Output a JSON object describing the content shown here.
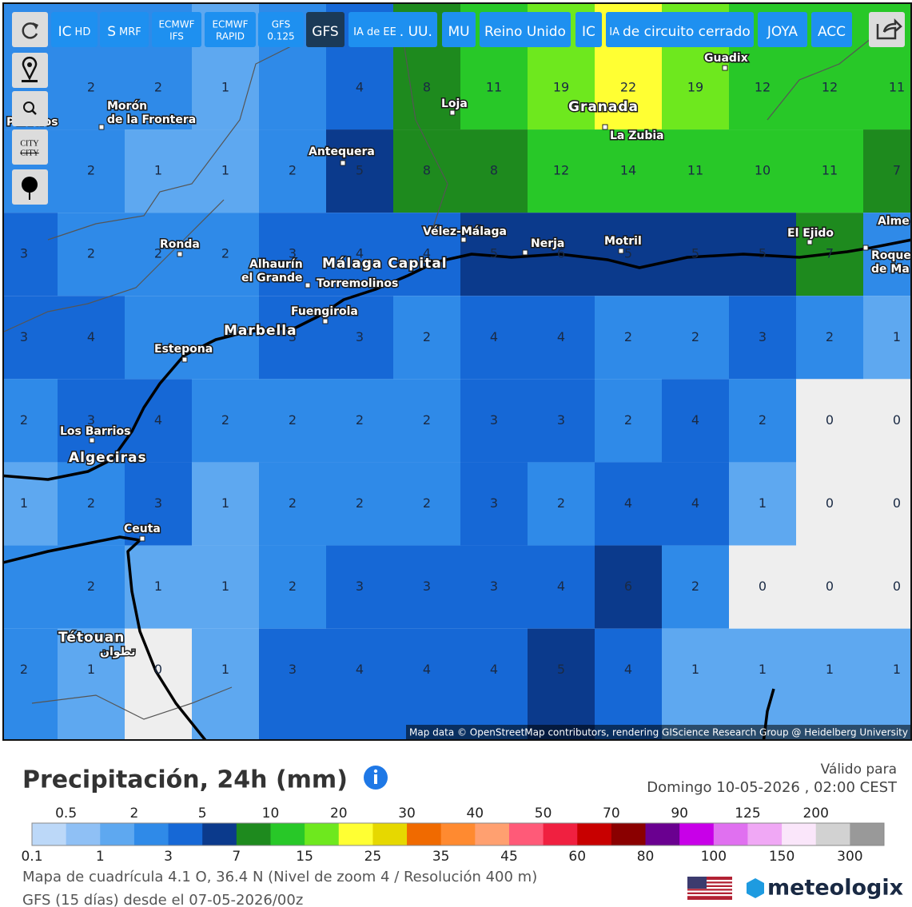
{
  "toolbar": {
    "buttons": [
      {
        "text": "IC",
        "post": "HD"
      },
      {
        "text": "S",
        "post": "MRF"
      },
      {
        "lines": [
          "ECMWF",
          "IFS"
        ]
      },
      {
        "lines": [
          "ECMWF",
          "RAPID"
        ]
      },
      {
        "lines": [
          "GFS",
          "0.125"
        ]
      },
      {
        "text": "GFS",
        "selected": true
      },
      {
        "pre": "IA de EE",
        "text": ". UU."
      },
      {
        "text": "MU"
      },
      {
        "text": "Reino Unido"
      },
      {
        "text": "IC"
      },
      {
        "pre": "IA",
        "text": "de circuito cerrado"
      },
      {
        "text": "JOYA"
      },
      {
        "text": "ACC"
      }
    ]
  },
  "sidebar": {
    "city_toggle": [
      "CITY",
      "CITY"
    ]
  },
  "map": {
    "grid_values": [
      [
        null,
        2,
        2,
        1,
        null,
        4,
        8,
        11,
        19,
        22,
        19,
        12,
        12,
        11
      ],
      [
        null,
        2,
        1,
        1,
        2,
        5,
        8,
        8,
        12,
        14,
        11,
        10,
        11,
        7
      ],
      [
        3,
        2,
        2,
        2,
        3,
        4,
        4,
        5,
        6,
        5,
        5,
        5,
        7,
        null
      ],
      [
        3,
        4,
        null,
        null,
        3,
        3,
        2,
        4,
        4,
        2,
        2,
        3,
        2,
        1
      ],
      [
        2,
        3,
        4,
        2,
        2,
        2,
        2,
        3,
        3,
        2,
        4,
        2,
        0,
        0
      ],
      [
        1,
        2,
        3,
        1,
        2,
        2,
        2,
        3,
        2,
        4,
        4,
        1,
        0,
        0
      ],
      [
        null,
        2,
        1,
        1,
        2,
        3,
        3,
        3,
        4,
        6,
        2,
        0,
        0,
        0
      ],
      [
        2,
        1,
        0,
        1,
        3,
        4,
        4,
        4,
        5,
        4,
        1,
        1,
        1,
        1
      ]
    ],
    "cities": [
      "Morón",
      "de la Frontera",
      "Palacios",
      "Antequera",
      "Loja",
      "Granada",
      "La Zubia",
      "Guadix",
      "Ronda",
      "Vélez-Málaga",
      "Nerja",
      "Motril",
      "El Ejido",
      "Alme",
      "Roque",
      "de Ma",
      "Alhaurín",
      "el Grande",
      "Málaga Capital",
      "Torremolinos",
      "Fuengirola",
      "Marbella",
      "Estepona",
      "Los Barrios",
      "Algeciras",
      "Ceuta",
      "Tétouan",
      "تطوان"
    ],
    "attribution": "Map data © OpenStreetMap contributors, rendering GIScience Research Group @ Heidelberg University"
  },
  "footer": {
    "title": "Precipitación, 24h (mm)",
    "valid_label": "Válido para",
    "valid_date": "Domingo 10-05-2026 , 02:00 CEST",
    "info_lines": [
      "Mapa de cuadrícula 4.1 O, 36.4 N (Nivel de zoom 4 / Resolución 400 m)",
      "GFS (15 días) desde el 07-05-2026/00z"
    ],
    "logo": "meteologix"
  },
  "legend": {
    "items": [
      {
        "value": 0.1,
        "color": "#bcd8f8"
      },
      {
        "value": 0.5,
        "color": "#8fc0f5"
      },
      {
        "value": 1,
        "color": "#5ea8f0"
      },
      {
        "value": 2,
        "color": "#2f8ae8"
      },
      {
        "value": 3,
        "color": "#1668d6"
      },
      {
        "value": 5,
        "color": "#0b3a8c"
      },
      {
        "value": 7,
        "color": "#1e8a1e"
      },
      {
        "value": 10,
        "color": "#28c828"
      },
      {
        "value": 15,
        "color": "#6ee81e"
      },
      {
        "value": 20,
        "color": "#ffff33"
      },
      {
        "value": 25,
        "color": "#e6d800"
      },
      {
        "value": 30,
        "color": "#f06a00"
      },
      {
        "value": 35,
        "color": "#ff8a30"
      },
      {
        "value": 40,
        "color": "#ffa070"
      },
      {
        "value": 45,
        "color": "#ff5a78"
      },
      {
        "value": 50,
        "color": "#f02040"
      },
      {
        "value": 60,
        "color": "#c80000"
      },
      {
        "value": 70,
        "color": "#8a0000"
      },
      {
        "value": 80,
        "color": "#6a0090"
      },
      {
        "value": 90,
        "color": "#c800e8"
      },
      {
        "value": 100,
        "color": "#e070f0"
      },
      {
        "value": 125,
        "color": "#f0a8f5"
      },
      {
        "value": 150,
        "color": "#fae6fa"
      },
      {
        "value": 200,
        "color": "#d2d2d2"
      },
      {
        "value": 300,
        "color": "#999999"
      }
    ]
  }
}
